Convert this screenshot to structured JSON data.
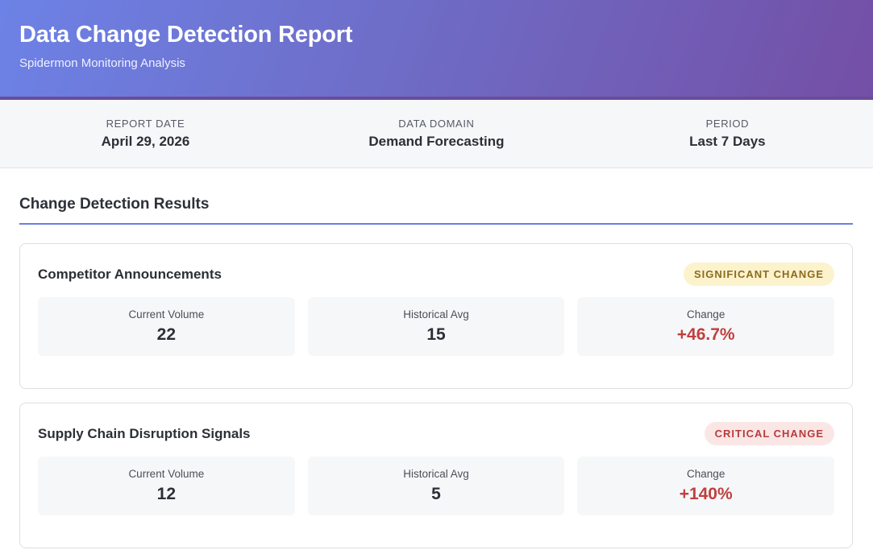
{
  "header": {
    "title": "Data Change Detection Report",
    "subtitle": "Spidermon Monitoring Analysis"
  },
  "meta": [
    {
      "label": "Report Date",
      "value": "April 29, 2026"
    },
    {
      "label": "Data Domain",
      "value": "Demand Forecasting"
    },
    {
      "label": "Period",
      "value": "Last 7 Days"
    }
  ],
  "section": {
    "title": "Change Detection Results"
  },
  "cards": [
    {
      "title": "Competitor Announcements",
      "badge": "Significant Change",
      "metrics": [
        {
          "label": "Current Volume",
          "value": "22"
        },
        {
          "label": "Historical Avg",
          "value": "15"
        },
        {
          "label": "Change",
          "value": "+46.7%"
        }
      ]
    },
    {
      "title": "Supply Chain Disruption Signals",
      "badge": "Critical Change",
      "metrics": [
        {
          "label": "Current Volume",
          "value": "12"
        },
        {
          "label": "Historical Avg",
          "value": "5"
        },
        {
          "label": "Change",
          "value": "+140%"
        }
      ]
    }
  ],
  "colors": {
    "accent": "#6b80df",
    "header_gradient_start": "#6d82e6",
    "header_gradient_end": "#744fa6",
    "significant_badge_bg": "#fcf2cc",
    "significant_badge_text": "#8a6c1f",
    "critical_badge_bg": "#fbe6e6",
    "critical_badge_text": "#b83b3b",
    "change_positive": "#c0403e"
  }
}
